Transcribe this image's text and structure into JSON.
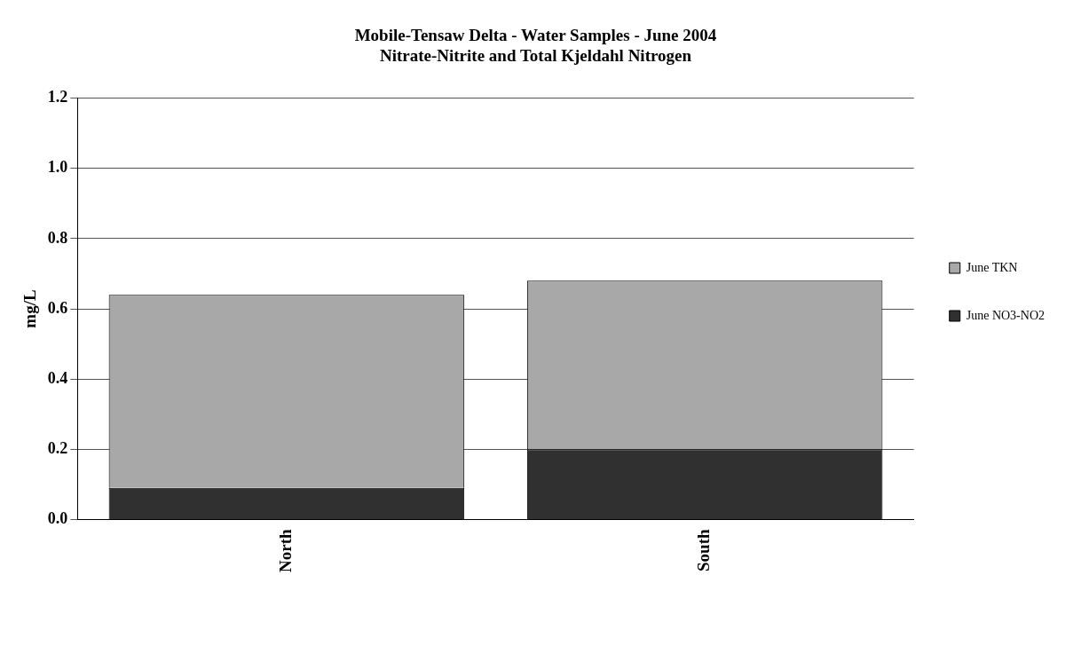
{
  "chart_data": {
    "type": "bar",
    "title": "Mobile-Tensaw Delta - Water Samples - June 2004",
    "subtitle": "Nitrate-Nitrite and Total Kjeldahl Nitrogen",
    "ylabel": "mg/L",
    "categories": [
      "North",
      "South"
    ],
    "series": [
      {
        "name": "June NO3-NO2",
        "color": "#303030",
        "values": [
          0.09,
          0.2
        ]
      },
      {
        "name": "June TKN",
        "color": "#a8a8a8",
        "values": [
          0.55,
          0.48
        ]
      }
    ],
    "stacked": true,
    "ylim": [
      0,
      1.2
    ],
    "yticks": [
      {
        "value": 0,
        "label": "0.0"
      },
      0.2,
      0.4,
      0.6,
      0.8,
      {
        "value": 1,
        "label": "1.0"
      },
      1.2
    ],
    "grid": "y",
    "legend": "right"
  }
}
